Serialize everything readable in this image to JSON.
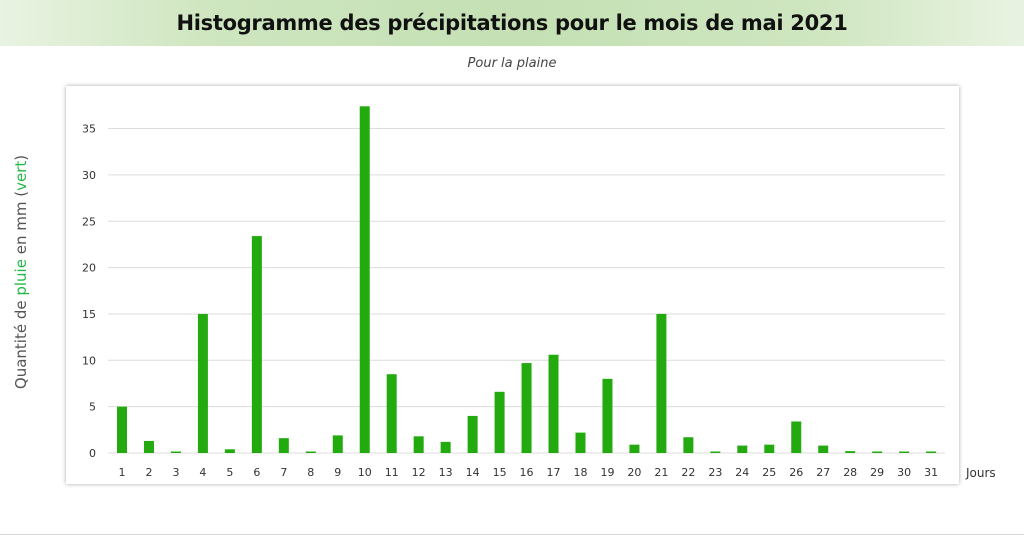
{
  "header": {
    "title": "Histogramme des précipitations pour le mois de mai 2021",
    "subtitle": "Pour la plaine"
  },
  "axis_label": {
    "before": "Quantité de ",
    "highlight_1": "pluie",
    "middle": " en mm (",
    "highlight_2": "vert",
    "after": ")"
  },
  "colors": {
    "bar": "#22aa0f",
    "accent_text": "#25b84a",
    "grid": "#dcdcdc"
  },
  "chart_data": {
    "type": "bar",
    "title": "Histogramme des précipitations pour le mois de mai 2021",
    "subtitle": "Pour la plaine",
    "xlabel": "Jours",
    "ylabel": "Quantité de pluie en mm (vert)",
    "categories": [
      "1",
      "2",
      "3",
      "4",
      "5",
      "6",
      "7",
      "8",
      "9",
      "10",
      "11",
      "12",
      "13",
      "14",
      "15",
      "16",
      "17",
      "18",
      "19",
      "20",
      "21",
      "22",
      "23",
      "24",
      "25",
      "26",
      "27",
      "28",
      "29",
      "30",
      "31"
    ],
    "values": [
      5,
      1.3,
      0.1,
      15,
      0.4,
      23.4,
      1.6,
      0.1,
      1.9,
      37.4,
      8.5,
      1.8,
      1.2,
      4,
      6.6,
      9.7,
      10.6,
      2.2,
      8,
      0.9,
      15,
      1.7,
      0.1,
      0.8,
      0.9,
      3.4,
      0.8,
      0.2,
      0.1,
      0.1,
      0.1
    ],
    "yticks": [
      0,
      5,
      10,
      15,
      20,
      25,
      30,
      35
    ],
    "ylim": [
      0,
      38
    ],
    "grid": true,
    "legend": "none"
  }
}
